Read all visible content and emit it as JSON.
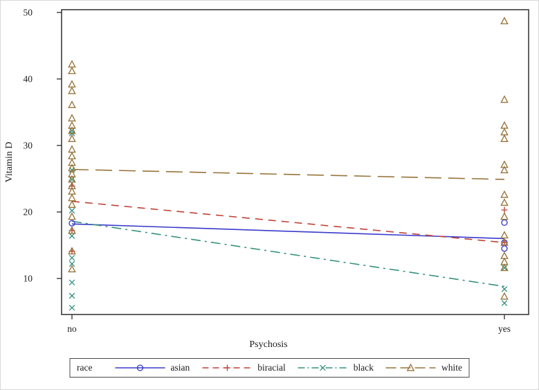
{
  "legend": {
    "title": "race"
  },
  "chart_data": {
    "type": "scatter",
    "title": "",
    "xlabel": "Psychosis",
    "ylabel": "Vitamin D",
    "categories": [
      "no",
      "yes"
    ],
    "yticks": [
      10,
      20,
      30,
      40,
      50
    ],
    "ylim": [
      4.5,
      50.7
    ],
    "grid": "off",
    "legend_position": "bottom",
    "axis_color": "#3b3b3b",
    "text_color": "#1c1c1c",
    "series": [
      {
        "name": "asian",
        "color": "#3a3acc",
        "marker": "circle",
        "dash": "solid",
        "points": {
          "no": [
            18.3
          ],
          "yes": [
            18.4,
            15.4,
            14.5
          ]
        },
        "fit": {
          "no": 18.2,
          "yes": 16.0
        }
      },
      {
        "name": "biracial",
        "color": "#bf4136",
        "marker": "plus",
        "dash": "dash",
        "points": {
          "no": [
            23.9,
            17.2,
            14.1
          ],
          "yes": [
            20.3,
            15.4
          ]
        },
        "fit": {
          "no": 21.6,
          "yes": 15.4
        }
      },
      {
        "name": "black",
        "color": "#35917f",
        "marker": "x",
        "dash": "dashdot",
        "points": {
          "no": [
            32.2,
            31.8,
            26.3,
            24.9,
            20.2,
            16.4,
            13.1,
            12.2,
            9.4,
            7.4,
            5.6
          ],
          "yes": [
            11.6,
            8.4,
            6.3
          ]
        },
        "fit": {
          "no": 18.6,
          "yes": 8.8
        }
      },
      {
        "name": "white",
        "color": "#97743a",
        "marker": "triangle",
        "dash": "longdash",
        "points": {
          "no": [
            42.2,
            41.2,
            39.2,
            38.2,
            36.1,
            34.1,
            33.0,
            32.2,
            31.0,
            29.4,
            28.4,
            27.4,
            26.6,
            25.7,
            24.9,
            23.9,
            23.1,
            22.1,
            21.1,
            19.3,
            17.2,
            14.1,
            11.4
          ],
          "yes": [
            48.7,
            36.9,
            33.0,
            32.0,
            31.0,
            27.1,
            26.3,
            22.6,
            21.4,
            19.3,
            16.5,
            15.4,
            13.4,
            12.5,
            11.6,
            7.3
          ]
        },
        "fit": {
          "no": 26.4,
          "yes": 24.9
        }
      }
    ]
  }
}
